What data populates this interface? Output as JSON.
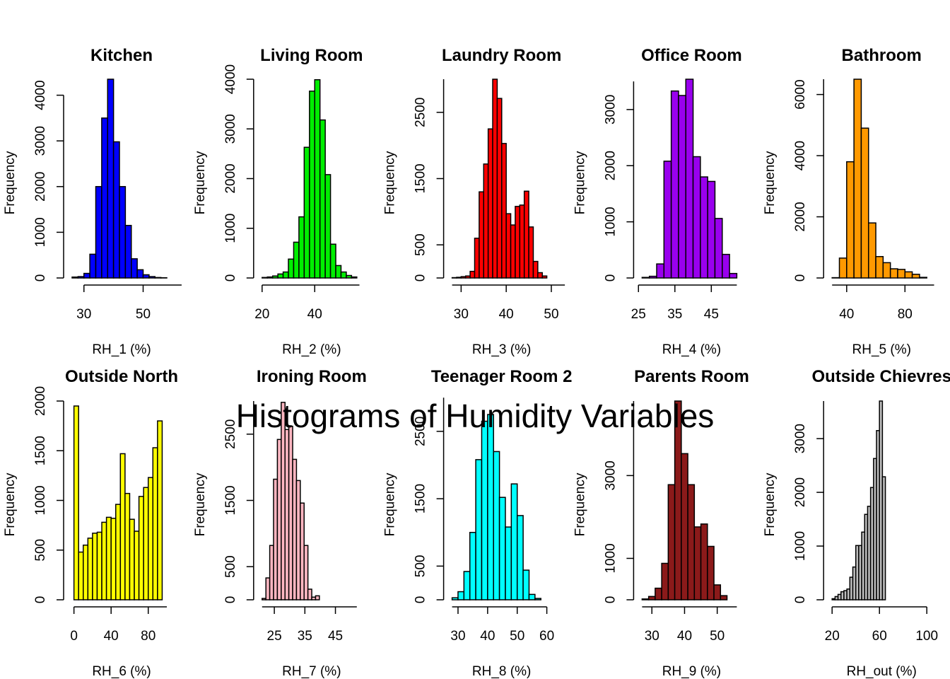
{
  "figure": {
    "title": "Histograms of Humidity Variables"
  },
  "chart_data": [
    {
      "type": "bar",
      "title": "Kitchen",
      "xlabel": "RH_1 (%)",
      "ylabel": "Frequency",
      "color": "#0000ff",
      "bin_start": 26,
      "bin_width": 2,
      "values": [
        20,
        30,
        100,
        520,
        2000,
        3500,
        4350,
        2980,
        2000,
        1150,
        420,
        180,
        70,
        30,
        10,
        5
      ],
      "xlim": [
        26,
        58
      ],
      "ylim": [
        0,
        4350
      ],
      "xticks": [
        30,
        50
      ],
      "yticks": [
        0,
        1000,
        2000,
        3000,
        4000
      ],
      "xaxis_range": [
        30,
        63
      ],
      "yaxis_range": [
        0,
        4000
      ]
    },
    {
      "type": "bar",
      "title": "Living Room",
      "xlabel": "RH_2 (%)",
      "ylabel": "Frequency",
      "color": "#00ee00",
      "bin_start": 20,
      "bin_width": 2,
      "values": [
        10,
        20,
        40,
        80,
        120,
        380,
        720,
        1230,
        2630,
        3760,
        3990,
        3180,
        2080,
        680,
        250,
        120,
        50,
        20
      ],
      "xlim": [
        20,
        56
      ],
      "ylim": [
        0,
        4000
      ],
      "xticks": [
        20,
        40
      ],
      "yticks": [
        0,
        1000,
        2000,
        3000,
        4000
      ],
      "xaxis_range": [
        20,
        57
      ],
      "yaxis_range": [
        0,
        4000
      ]
    },
    {
      "type": "bar",
      "title": "Laundry Room",
      "xlabel": "RH_3 (%)",
      "ylabel": "Frequency",
      "color": "#ff0000",
      "bin_start": 28,
      "bin_width": 1,
      "values": [
        5,
        10,
        20,
        30,
        100,
        600,
        1300,
        1720,
        2250,
        3000,
        2710,
        2030,
        970,
        800,
        1080,
        1100,
        1310,
        770,
        250,
        80,
        30
      ],
      "xlim": [
        28,
        49
      ],
      "ylim": [
        0,
        3000
      ],
      "xticks": [
        30,
        40,
        50
      ],
      "yticks": [
        0,
        500,
        1500,
        2500
      ],
      "xaxis_range": [
        28,
        53
      ],
      "yaxis_range": [
        0,
        3000
      ]
    },
    {
      "type": "bar",
      "title": "Office Room",
      "xlabel": "RH_4 (%)",
      "ylabel": "Frequency",
      "color": "#9900ee",
      "bin_start": 26,
      "bin_width": 2,
      "values": [
        10,
        30,
        250,
        2080,
        3330,
        3250,
        3540,
        2160,
        1800,
        1720,
        1060,
        420,
        80
      ],
      "xlim": [
        26,
        52
      ],
      "ylim": [
        0,
        3540
      ],
      "xticks": [
        25,
        35,
        45
      ],
      "yticks": [
        0,
        1000,
        2000,
        3000
      ],
      "xaxis_range": [
        25,
        52
      ],
      "yaxis_range": [
        0,
        3500
      ]
    },
    {
      "type": "bar",
      "title": "Bathroom",
      "xlabel": "RH_5 (%)",
      "ylabel": "Frequency",
      "color": "#ff9900",
      "bin_start": 30,
      "bin_width": 5,
      "values": [
        10,
        650,
        3800,
        6500,
        4900,
        1800,
        700,
        500,
        300,
        280,
        200,
        120,
        20
      ],
      "xlim": [
        30,
        95
      ],
      "ylim": [
        0,
        6500
      ],
      "xticks": [
        40,
        80
      ],
      "yticks": [
        0,
        2000,
        4000,
        6000
      ],
      "xaxis_range": [
        30,
        100
      ],
      "yaxis_range": [
        0,
        6500
      ]
    },
    {
      "type": "bar",
      "title": "Outside North",
      "xlabel": "RH_6 (%)",
      "ylabel": "Frequency",
      "color": "#ffff00",
      "bin_start": 0,
      "bin_width": 5,
      "values": [
        1950,
        480,
        550,
        620,
        670,
        680,
        780,
        830,
        820,
        960,
        1470,
        1070,
        810,
        690,
        1040,
        1130,
        1230,
        1530,
        1800
      ],
      "xlim": [
        -2,
        100
      ],
      "ylim": [
        0,
        2000
      ],
      "xticks": [
        0,
        40,
        80
      ],
      "yticks": [
        0,
        500,
        1000,
        1500,
        2000
      ],
      "xaxis_range": [
        0,
        100
      ],
      "yaxis_range": [
        0,
        2000
      ]
    },
    {
      "type": "bar",
      "title": "Ironing Room",
      "xlabel": "RH_7 (%)",
      "ylabel": "Frequency",
      "color": "#ffb6c1",
      "bin_start": 21,
      "bin_width": 1.25,
      "values": [
        20,
        330,
        820,
        1820,
        2420,
        2980,
        2570,
        2620,
        2120,
        1800,
        1460,
        820,
        160,
        40,
        60
      ],
      "xlim": [
        21,
        52
      ],
      "ylim": [
        0,
        3000
      ],
      "xticks": [
        25,
        35,
        45
      ],
      "yticks": [
        0,
        500,
        1500,
        2500
      ],
      "xaxis_range": [
        21,
        52
      ],
      "yaxis_range": [
        0,
        3000
      ]
    },
    {
      "type": "bar",
      "title": "Teenager Room 2",
      "xlabel": "RH_8 (%)",
      "ylabel": "Frequency",
      "color": "#00ffff",
      "bin_start": 28,
      "bin_width": 2,
      "values": [
        30,
        120,
        420,
        1000,
        2080,
        2650,
        2750,
        2200,
        1520,
        1080,
        1720,
        1250,
        440,
        80,
        20
      ],
      "xlim": [
        28,
        60
      ],
      "ylim": [
        0,
        2950
      ],
      "xticks": [
        30,
        40,
        50,
        60
      ],
      "yticks": [
        0,
        500,
        1500,
        2500
      ],
      "xaxis_range": [
        28,
        60
      ],
      "yaxis_range": [
        0,
        3000
      ]
    },
    {
      "type": "bar",
      "title": "Parents Room",
      "xlabel": "RH_9 (%)",
      "ylabel": "Frequency",
      "color": "#8b1a1a",
      "bin_start": 27,
      "bin_width": 2,
      "values": [
        20,
        80,
        280,
        880,
        2780,
        4800,
        3530,
        2780,
        1760,
        1830,
        1290,
        360,
        100
      ],
      "xlim": [
        27,
        56
      ],
      "ylim": [
        0,
        4800
      ],
      "xticks": [
        30,
        40,
        50
      ],
      "yticks": [
        0,
        1000,
        3000
      ],
      "xaxis_range": [
        27,
        56
      ],
      "yaxis_range": [
        0,
        4800
      ]
    },
    {
      "type": "bar",
      "title": "Outside Chievres",
      "xlabel": "RH_out (%)",
      "ylabel": "Frequency",
      "color": "#bebebe",
      "bin_start": 20,
      "bin_width": 2.5,
      "values": [
        20,
        60,
        100,
        150,
        170,
        200,
        420,
        610,
        1010,
        1010,
        1260,
        1590,
        1740,
        2090,
        2630,
        3150,
        3700,
        2290
      ],
      "xlim": [
        20,
        100
      ],
      "ylim": [
        0,
        3700
      ],
      "xticks": [
        20,
        60,
        100
      ],
      "yticks": [
        0,
        1000,
        2000,
        3000
      ],
      "xaxis_range": [
        20,
        100
      ],
      "yaxis_range": [
        0,
        3700
      ]
    }
  ]
}
